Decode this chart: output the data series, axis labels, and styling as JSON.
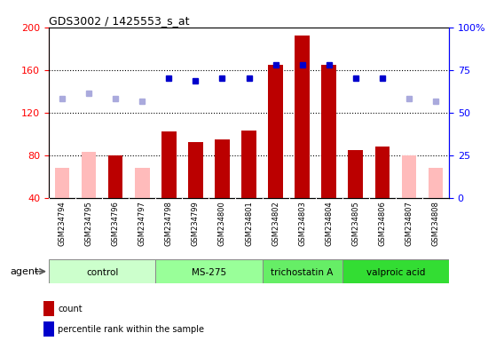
{
  "title": "GDS3002 / 1425553_s_at",
  "samples": [
    "GSM234794",
    "GSM234795",
    "GSM234796",
    "GSM234797",
    "GSM234798",
    "GSM234799",
    "GSM234800",
    "GSM234801",
    "GSM234802",
    "GSM234803",
    "GSM234804",
    "GSM234805",
    "GSM234806",
    "GSM234807",
    "GSM234808"
  ],
  "counts": [
    null,
    null,
    80,
    null,
    102,
    92,
    95,
    103,
    165,
    192,
    165,
    85,
    88,
    null,
    null
  ],
  "counts_absent": [
    68,
    83,
    null,
    68,
    null,
    null,
    null,
    null,
    null,
    null,
    null,
    null,
    null,
    80,
    68
  ],
  "percentile_ranks": [
    null,
    null,
    null,
    null,
    152,
    150,
    152,
    152,
    165,
    165,
    165,
    152,
    152,
    null,
    null
  ],
  "percentile_ranks_absent": [
    133,
    138,
    133,
    131,
    null,
    null,
    null,
    null,
    null,
    null,
    null,
    null,
    null,
    133,
    131
  ],
  "groups": [
    {
      "label": "control",
      "start": 0,
      "end": 4,
      "color": "#ccffcc"
    },
    {
      "label": "MS-275",
      "start": 4,
      "end": 8,
      "color": "#99ff99"
    },
    {
      "label": "trichostatin A",
      "start": 8,
      "end": 11,
      "color": "#66ee66"
    },
    {
      "label": "valproic acid",
      "start": 11,
      "end": 15,
      "color": "#33dd33"
    }
  ],
  "ylim_left": [
    40,
    200
  ],
  "ylim_right": [
    0,
    100
  ],
  "yticks_left": [
    40,
    80,
    120,
    160,
    200
  ],
  "yticks_right": [
    0,
    25,
    50,
    75,
    100
  ],
  "bar_color": "#bb0000",
  "bar_absent_color": "#ffbbbb",
  "rank_color": "#0000cc",
  "rank_absent_color": "#aaaadd",
  "plot_bg": "#ffffff",
  "xtick_bg": "#cccccc",
  "bar_width": 0.55
}
